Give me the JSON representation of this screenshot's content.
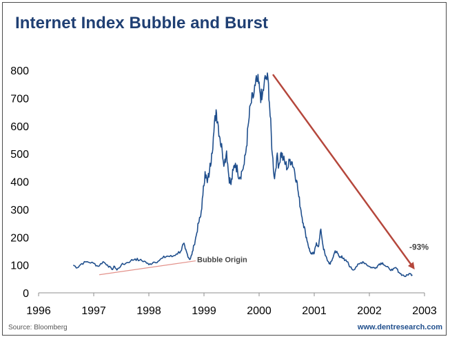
{
  "header": {
    "title": "Internet Index Bubble and Burst"
  },
  "footer": {
    "source": "Source: Bloomberg",
    "website": "www.dentresearch.com"
  },
  "colors": {
    "series": "#1f4e8c",
    "title": "#1f3f73",
    "arrow": "#b5473c",
    "trendline": "#e3918a"
  },
  "chart_data": {
    "type": "line",
    "title": "Internet Index Bubble and Burst",
    "xlabel": "",
    "ylabel": "",
    "xlim": [
      1996,
      2003
    ],
    "ylim": [
      0,
      800
    ],
    "x_ticks": [
      "1996",
      "1997",
      "1998",
      "1999",
      "2000",
      "2001",
      "2002",
      "2003"
    ],
    "y_ticks": [
      "0",
      "100",
      "200",
      "300",
      "400",
      "500",
      "600",
      "700",
      "800"
    ],
    "grid": false,
    "legend": "none",
    "series": [
      {
        "points": [
          [
            1996.63,
            100
          ],
          [
            1996.7,
            90
          ],
          [
            1996.78,
            105
          ],
          [
            1996.88,
            112
          ],
          [
            1997.0,
            106
          ],
          [
            1997.08,
            95
          ],
          [
            1997.17,
            112
          ],
          [
            1997.25,
            100
          ],
          [
            1997.33,
            84
          ],
          [
            1997.38,
            95
          ],
          [
            1997.42,
            82
          ],
          [
            1997.5,
            100
          ],
          [
            1997.58,
            106
          ],
          [
            1997.67,
            115
          ],
          [
            1997.75,
            122
          ],
          [
            1997.83,
            117
          ],
          [
            1997.92,
            114
          ],
          [
            1998.0,
            101
          ],
          [
            1998.08,
            110
          ],
          [
            1998.17,
            114
          ],
          [
            1998.25,
            125
          ],
          [
            1998.33,
            132
          ],
          [
            1998.42,
            130
          ],
          [
            1998.5,
            140
          ],
          [
            1998.58,
            150
          ],
          [
            1998.63,
            176
          ],
          [
            1998.66,
            158
          ],
          [
            1998.7,
            138
          ],
          [
            1998.74,
            120
          ],
          [
            1998.78,
            137
          ],
          [
            1998.82,
            172
          ],
          [
            1998.86,
            206
          ],
          [
            1998.9,
            250
          ],
          [
            1998.94,
            275
          ],
          [
            1998.98,
            350
          ],
          [
            1999.02,
            436
          ],
          [
            1999.06,
            396
          ],
          [
            1999.1,
            436
          ],
          [
            1999.14,
            502
          ],
          [
            1999.18,
            578
          ],
          [
            1999.22,
            658
          ],
          [
            1999.25,
            615
          ],
          [
            1999.29,
            556
          ],
          [
            1999.33,
            512
          ],
          [
            1999.37,
            464
          ],
          [
            1999.41,
            510
          ],
          [
            1999.45,
            420
          ],
          [
            1999.49,
            389
          ],
          [
            1999.53,
            440
          ],
          [
            1999.57,
            466
          ],
          [
            1999.61,
            437
          ],
          [
            1999.65,
            416
          ],
          [
            1999.69,
            438
          ],
          [
            1999.73,
            462
          ],
          [
            1999.77,
            526
          ],
          [
            1999.81,
            614
          ],
          [
            1999.85,
            680
          ],
          [
            1999.89,
            700
          ],
          [
            1999.93,
            745
          ],
          [
            1999.97,
            760
          ],
          [
            2000.01,
            728
          ],
          [
            2000.05,
            694
          ],
          [
            2000.09,
            748
          ],
          [
            2000.13,
            776
          ],
          [
            2000.17,
            752
          ],
          [
            2000.2,
            635
          ],
          [
            2000.24,
            498
          ],
          [
            2000.28,
            410
          ],
          [
            2000.32,
            490
          ],
          [
            2000.36,
            460
          ],
          [
            2000.4,
            505
          ],
          [
            2000.44,
            478
          ],
          [
            2000.48,
            462
          ],
          [
            2000.52,
            448
          ],
          [
            2000.56,
            480
          ],
          [
            2000.6,
            470
          ],
          [
            2000.64,
            442
          ],
          [
            2000.68,
            405
          ],
          [
            2000.72,
            345
          ],
          [
            2000.76,
            296
          ],
          [
            2000.8,
            251
          ],
          [
            2000.84,
            216
          ],
          [
            2000.88,
            181
          ],
          [
            2000.92,
            149
          ],
          [
            2000.96,
            139
          ],
          [
            2001.0,
            142
          ],
          [
            2001.04,
            180
          ],
          [
            2001.08,
            168
          ],
          [
            2001.12,
            229
          ],
          [
            2001.16,
            168
          ],
          [
            2001.2,
            134
          ],
          [
            2001.25,
            113
          ],
          [
            2001.29,
            103
          ],
          [
            2001.33,
            122
          ],
          [
            2001.38,
            151
          ],
          [
            2001.42,
            143
          ],
          [
            2001.46,
            127
          ],
          [
            2001.5,
            133
          ],
          [
            2001.55,
            116
          ],
          [
            2001.6,
            112
          ],
          [
            2001.65,
            93
          ],
          [
            2001.71,
            82
          ],
          [
            2001.76,
            94
          ],
          [
            2001.82,
            104
          ],
          [
            2001.88,
            112
          ],
          [
            2001.94,
            104
          ],
          [
            2002.0,
            94
          ],
          [
            2002.06,
            90
          ],
          [
            2002.12,
            91
          ],
          [
            2002.18,
            104
          ],
          [
            2002.24,
            108
          ],
          [
            2002.3,
            95
          ],
          [
            2002.36,
            87
          ],
          [
            2002.42,
            81
          ],
          [
            2002.48,
            91
          ],
          [
            2002.54,
            73
          ],
          [
            2002.6,
            64
          ],
          [
            2002.66,
            59
          ],
          [
            2002.72,
            69
          ],
          [
            2002.78,
            65
          ]
        ]
      }
    ],
    "annotations": [
      {
        "text": "Bubble Origin",
        "type": "trendline",
        "from": [
          1997.1,
          65
        ],
        "to": [
          1998.85,
          115
        ]
      },
      {
        "text": "-93%",
        "type": "arrow",
        "from": [
          2000.25,
          785
        ],
        "to": [
          2002.8,
          90
        ]
      }
    ]
  }
}
